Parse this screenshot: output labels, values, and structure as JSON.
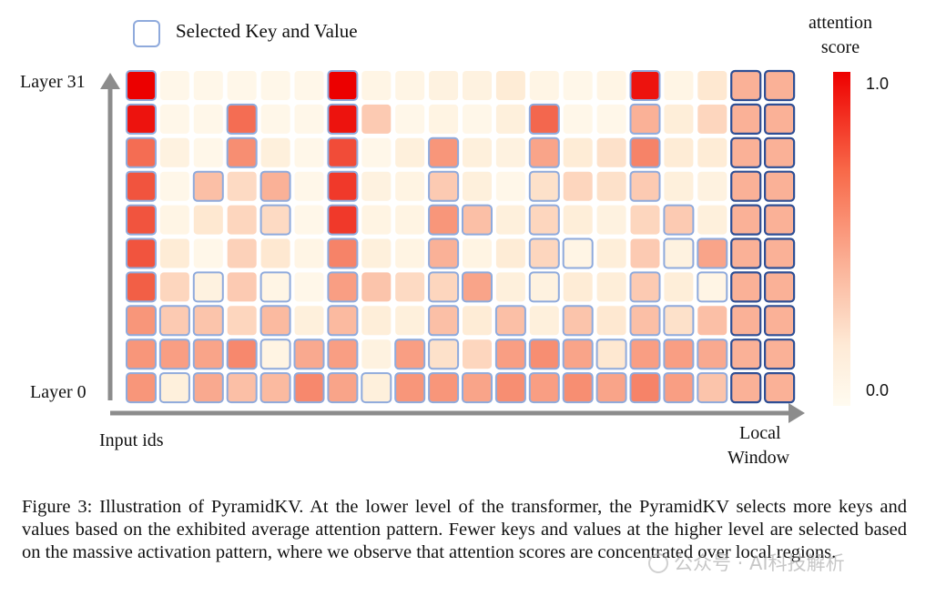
{
  "legend": {
    "label": "Selected Key and Value",
    "box_color": "#8faadc"
  },
  "y_axis": {
    "top_label": "Layer 31",
    "bottom_label": "Layer 0"
  },
  "x_axis": {
    "left_label": "Input ids",
    "right_label_line1": "Local",
    "right_label_line2": "Window"
  },
  "colorbar": {
    "title_line1": "attention",
    "title_line2": "score",
    "max_label": "1.0",
    "min_label": "0.0"
  },
  "caption": {
    "text": "Figure 3:  Illustration of PyramidKV. At the lower level of the transformer, the PyramidKV selects more keys and values based on the exhibited average attention pattern. Fewer keys and values at the higher level are selected based on the massive activation pattern, where we observe that attention scores are concentrated over local regions."
  },
  "watermark": {
    "text": "公众号 · AI科技解析"
  },
  "colors": {
    "selected_border": "#8faadc",
    "local_window_border": "#2f4f95",
    "axis_gray": "#8c8c8c"
  },
  "chart_data": {
    "type": "heatmap",
    "title": "Illustration of PyramidKV",
    "xlabel": "Input ids",
    "ylabel": "Layer",
    "row_labels": [
      "Layer 31",
      "",
      "",
      "",
      "",
      "",
      "",
      "",
      "",
      "Layer 0"
    ],
    "n_cols": 20,
    "local_window_columns": [
      18,
      19
    ],
    "value_range": [
      0.0,
      1.0
    ],
    "values": [
      [
        1.0,
        0.05,
        0.05,
        0.05,
        0.05,
        0.05,
        1.0,
        0.08,
        0.08,
        0.12,
        0.12,
        0.2,
        0.08,
        0.05,
        0.08,
        0.95,
        0.08,
        0.22,
        0.45,
        0.45
      ],
      [
        0.95,
        0.05,
        0.05,
        0.7,
        0.05,
        0.05,
        0.95,
        0.35,
        0.05,
        0.1,
        0.05,
        0.15,
        0.72,
        0.05,
        0.05,
        0.45,
        0.18,
        0.3,
        0.45,
        0.45
      ],
      [
        0.7,
        0.12,
        0.05,
        0.58,
        0.15,
        0.05,
        0.8,
        0.05,
        0.15,
        0.55,
        0.15,
        0.12,
        0.5,
        0.2,
        0.25,
        0.62,
        0.2,
        0.2,
        0.45,
        0.45
      ],
      [
        0.78,
        0.05,
        0.4,
        0.28,
        0.45,
        0.05,
        0.85,
        0.12,
        0.1,
        0.35,
        0.15,
        0.05,
        0.25,
        0.3,
        0.25,
        0.35,
        0.15,
        0.12,
        0.45,
        0.45
      ],
      [
        0.78,
        0.08,
        0.22,
        0.3,
        0.28,
        0.05,
        0.85,
        0.1,
        0.1,
        0.55,
        0.4,
        0.15,
        0.3,
        0.18,
        0.12,
        0.3,
        0.35,
        0.15,
        0.45,
        0.45
      ],
      [
        0.78,
        0.2,
        0.05,
        0.32,
        0.22,
        0.08,
        0.62,
        0.15,
        0.1,
        0.45,
        0.1,
        0.2,
        0.3,
        0.08,
        0.18,
        0.35,
        0.12,
        0.5,
        0.45,
        0.45
      ],
      [
        0.75,
        0.3,
        0.12,
        0.35,
        0.08,
        0.05,
        0.52,
        0.38,
        0.28,
        0.3,
        0.5,
        0.15,
        0.12,
        0.2,
        0.18,
        0.35,
        0.18,
        0.08,
        0.45,
        0.45
      ],
      [
        0.55,
        0.35,
        0.38,
        0.3,
        0.42,
        0.15,
        0.42,
        0.18,
        0.15,
        0.4,
        0.2,
        0.4,
        0.15,
        0.38,
        0.22,
        0.4,
        0.25,
        0.4,
        0.45,
        0.45
      ],
      [
        0.55,
        0.52,
        0.5,
        0.6,
        0.1,
        0.48,
        0.52,
        0.12,
        0.52,
        0.25,
        0.3,
        0.52,
        0.58,
        0.5,
        0.22,
        0.52,
        0.52,
        0.48,
        0.45,
        0.45
      ],
      [
        0.55,
        0.15,
        0.48,
        0.4,
        0.42,
        0.6,
        0.5,
        0.15,
        0.55,
        0.55,
        0.5,
        0.58,
        0.52,
        0.58,
        0.5,
        0.62,
        0.52,
        0.38,
        0.45,
        0.45
      ]
    ],
    "selected": [
      [
        1,
        0,
        0,
        0,
        0,
        0,
        1,
        0,
        0,
        0,
        0,
        0,
        0,
        0,
        0,
        1,
        0,
        0,
        1,
        1
      ],
      [
        1,
        0,
        0,
        1,
        0,
        0,
        1,
        0,
        0,
        0,
        0,
        0,
        1,
        0,
        0,
        1,
        0,
        0,
        1,
        1
      ],
      [
        1,
        0,
        0,
        1,
        0,
        0,
        1,
        0,
        0,
        1,
        0,
        0,
        1,
        0,
        0,
        1,
        0,
        0,
        1,
        1
      ],
      [
        1,
        0,
        1,
        0,
        1,
        0,
        1,
        0,
        0,
        1,
        0,
        0,
        1,
        0,
        0,
        1,
        0,
        0,
        1,
        1
      ],
      [
        1,
        0,
        0,
        0,
        1,
        0,
        1,
        0,
        0,
        1,
        1,
        0,
        1,
        0,
        0,
        0,
        1,
        0,
        1,
        1
      ],
      [
        1,
        0,
        0,
        0,
        0,
        0,
        1,
        0,
        0,
        1,
        0,
        0,
        1,
        1,
        0,
        0,
        1,
        1,
        1,
        1
      ],
      [
        1,
        0,
        1,
        0,
        1,
        0,
        1,
        0,
        0,
        1,
        1,
        0,
        1,
        0,
        0,
        1,
        0,
        1,
        1,
        1
      ],
      [
        1,
        1,
        1,
        0,
        1,
        0,
        1,
        0,
        0,
        1,
        0,
        1,
        0,
        1,
        0,
        1,
        1,
        0,
        1,
        1
      ],
      [
        1,
        1,
        1,
        1,
        1,
        1,
        1,
        0,
        1,
        1,
        0,
        1,
        1,
        1,
        1,
        1,
        1,
        1,
        1,
        1
      ],
      [
        1,
        1,
        1,
        1,
        1,
        1,
        1,
        1,
        1,
        1,
        1,
        1,
        1,
        1,
        1,
        1,
        1,
        1,
        1,
        1
      ]
    ]
  }
}
